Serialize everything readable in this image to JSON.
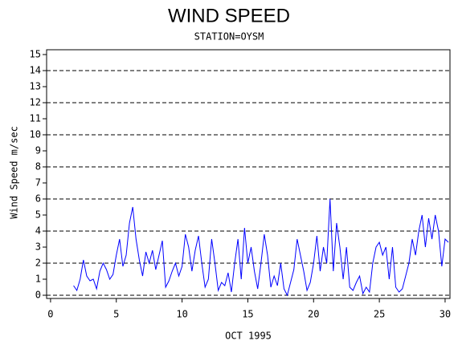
{
  "chart_data": {
    "type": "line",
    "title": "WIND SPEED",
    "subtitle": "STATION=OYSM",
    "x_label": "OCT 1995",
    "y_label": "Wind Speed m/sec",
    "xlim": [
      -0.3,
      30.37
    ],
    "xticks": [
      0,
      5,
      10,
      15,
      20,
      25,
      30
    ],
    "ylim": [
      -0.2,
      15.3
    ],
    "yticks": [
      0,
      1,
      2,
      3,
      4,
      5,
      6,
      7,
      8,
      9,
      10,
      11,
      12,
      13,
      14,
      15
    ],
    "grid_values": [
      0,
      2,
      4,
      6,
      8,
      10,
      12,
      14
    ],
    "grid": true,
    "x": [
      1.75,
      2,
      2.25,
      2.5,
      2.75,
      3,
      3.25,
      3.5,
      3.75,
      4,
      4.25,
      4.5,
      4.75,
      5,
      5.25,
      5.5,
      5.75,
      6,
      6.25,
      6.5,
      6.75,
      7,
      7.25,
      7.5,
      7.75,
      8,
      8.25,
      8.5,
      8.75,
      9,
      9.25,
      9.5,
      9.75,
      10,
      10.25,
      10.5,
      10.75,
      11,
      11.25,
      11.5,
      11.75,
      12,
      12.25,
      12.5,
      12.75,
      13,
      13.25,
      13.5,
      13.75,
      14,
      14.25,
      14.5,
      14.75,
      15,
      15.25,
      15.5,
      15.75,
      16,
      16.25,
      16.5,
      16.75,
      17,
      17.25,
      17.5,
      17.75,
      18,
      18.25,
      18.5,
      18.75,
      19,
      19.25,
      19.5,
      19.75,
      20,
      20.25,
      20.5,
      20.75,
      21,
      21.25,
      21.5,
      21.75,
      22,
      22.25,
      22.5,
      22.75,
      23,
      23.25,
      23.5,
      23.75,
      24,
      24.25,
      24.5,
      24.75,
      25,
      25.25,
      25.5,
      25.75,
      26,
      26.25,
      26.5,
      26.75,
      27,
      27.25,
      27.5,
      27.75,
      28,
      28.25,
      28.5,
      28.75,
      29,
      29.25,
      29.5,
      29.75,
      30,
      30.25
    ],
    "series": [
      {
        "name": "Wind Speed",
        "color": "#0000ff",
        "values": [
          0.6,
          0.3,
          1.0,
          2.2,
          1.2,
          0.9,
          1.0,
          0.4,
          1.5,
          2.0,
          1.6,
          1.0,
          1.3,
          2.5,
          3.5,
          1.8,
          2.5,
          4.5,
          5.5,
          3.5,
          2.2,
          1.2,
          2.7,
          2.0,
          2.8,
          1.6,
          2.5,
          3.4,
          0.5,
          0.9,
          1.5,
          2.0,
          1.2,
          1.8,
          3.8,
          3.0,
          1.5,
          2.8,
          3.7,
          2.0,
          0.5,
          1.0,
          3.5,
          2.0,
          0.3,
          0.8,
          0.6,
          1.4,
          0.2,
          2.0,
          3.5,
          1.0,
          4.2,
          2.0,
          3.0,
          1.5,
          0.4,
          2.0,
          3.8,
          2.5,
          0.5,
          1.2,
          0.6,
          2.0,
          0.4,
          0.0,
          0.8,
          1.6,
          3.5,
          2.5,
          1.5,
          0.3,
          0.8,
          2.0,
          3.7,
          1.5,
          3.0,
          2.0,
          6.0,
          1.5,
          4.5,
          3.0,
          1.0,
          3.0,
          0.5,
          0.3,
          0.8,
          1.2,
          0.1,
          0.5,
          0.2,
          2.0,
          3.0,
          3.3,
          2.5,
          3.0,
          1.0,
          3.0,
          0.5,
          0.2,
          0.4,
          1.2,
          2.0,
          3.5,
          2.5,
          4.0,
          5.0,
          3.0,
          4.8,
          3.5,
          5.0,
          4.0,
          1.8,
          3.5,
          3.3
        ]
      }
    ]
  }
}
